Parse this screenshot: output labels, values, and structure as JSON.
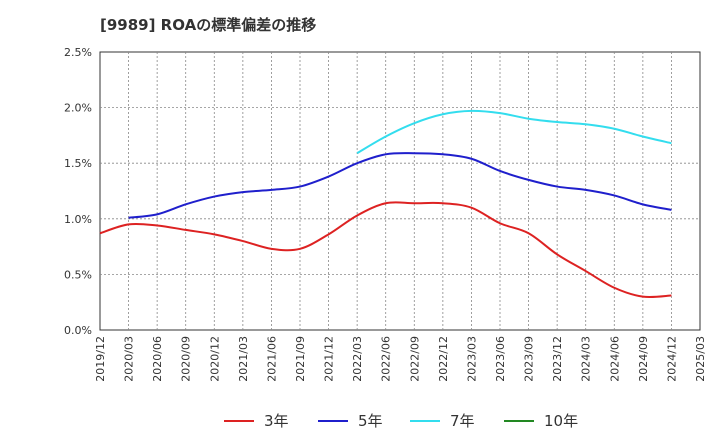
{
  "chart_data": {
    "type": "line",
    "title": "[9989]  ROAの標準偏差の推移",
    "xlabel": "",
    "ylabel": "",
    "x_ticks": [
      "2019/12",
      "2020/03",
      "2020/06",
      "2020/09",
      "2020/12",
      "2021/03",
      "2021/06",
      "2021/09",
      "2021/12",
      "2022/03",
      "2022/06",
      "2022/09",
      "2022/12",
      "2023/03",
      "2023/06",
      "2023/09",
      "2023/12",
      "2024/03",
      "2024/06",
      "2024/09",
      "2024/12",
      "2025/03"
    ],
    "y_ticks": [
      "0.0%",
      "0.5%",
      "1.0%",
      "1.5%",
      "2.0%",
      "2.5%"
    ],
    "ylim": [
      0,
      2.5
    ],
    "grid": true,
    "legend_position": "bottom",
    "series": [
      {
        "name": "3年",
        "color": "#dd2222",
        "x": [
          "2019/12",
          "2020/03",
          "2020/06",
          "2020/09",
          "2020/12",
          "2021/03",
          "2021/06",
          "2021/09",
          "2021/12",
          "2022/03",
          "2022/06",
          "2022/09",
          "2022/12",
          "2023/03",
          "2023/06",
          "2023/09",
          "2023/12",
          "2024/03",
          "2024/06",
          "2024/09",
          "2024/12"
        ],
        "values": [
          0.87,
          0.95,
          0.94,
          0.9,
          0.86,
          0.8,
          0.73,
          0.73,
          0.86,
          1.03,
          1.14,
          1.14,
          1.14,
          1.1,
          0.96,
          0.87,
          0.68,
          0.53,
          0.38,
          0.3,
          0.31
        ]
      },
      {
        "name": "5年",
        "color": "#1f1fcc",
        "x": [
          "2020/03",
          "2020/06",
          "2020/09",
          "2020/12",
          "2021/03",
          "2021/06",
          "2021/09",
          "2021/12",
          "2022/03",
          "2022/06",
          "2022/09",
          "2022/12",
          "2023/03",
          "2023/06",
          "2023/09",
          "2023/12",
          "2024/03",
          "2024/06",
          "2024/09",
          "2024/12"
        ],
        "values": [
          1.01,
          1.04,
          1.13,
          1.2,
          1.24,
          1.26,
          1.29,
          1.38,
          1.5,
          1.58,
          1.59,
          1.58,
          1.54,
          1.43,
          1.35,
          1.29,
          1.26,
          1.21,
          1.13,
          1.08
        ]
      },
      {
        "name": "7年",
        "color": "#33ddee",
        "x": [
          "2022/03",
          "2022/06",
          "2022/09",
          "2022/12",
          "2023/03",
          "2023/06",
          "2023/09",
          "2023/12",
          "2024/03",
          "2024/06",
          "2024/09",
          "2024/12"
        ],
        "values": [
          1.59,
          1.74,
          1.86,
          1.94,
          1.97,
          1.95,
          1.9,
          1.87,
          1.85,
          1.81,
          1.74,
          1.68
        ]
      },
      {
        "name": "10年",
        "color": "#228822",
        "x": [],
        "values": []
      }
    ]
  }
}
